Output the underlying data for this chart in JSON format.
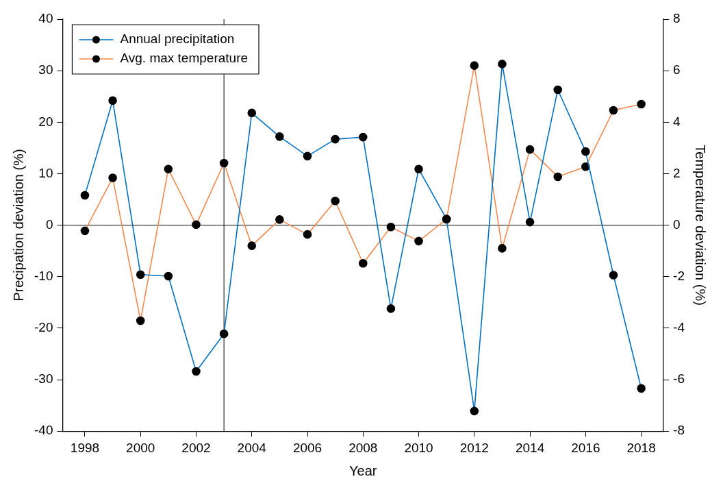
{
  "chart_data": {
    "type": "line",
    "xlabel": "Year",
    "ylabel": "Precipation deviation (%)",
    "y2label": "Temperature deviation (%)",
    "x": [
      1998,
      1999,
      2000,
      2001,
      2002,
      2003,
      2004,
      2005,
      2006,
      2007,
      2008,
      2009,
      2010,
      2011,
      2012,
      2013,
      2014,
      2015,
      2016,
      2017,
      2018
    ],
    "series": [
      {
        "name": "Annual precipitation",
        "color": "#0070c0",
        "values": [
          5.8,
          24.2,
          -9.6,
          -9.9,
          -28.4,
          -21.1,
          21.8,
          17.2,
          13.4,
          16.7,
          17.1,
          -16.2,
          10.9,
          1.2,
          -36.1,
          31.3,
          0.6,
          26.3,
          14.3,
          -9.7,
          -31.7
        ]
      },
      {
        "name": "Avg. max temperature",
        "color": "#f4894f",
        "axis": "y2",
        "values": [
          -0.22,
          1.84,
          -3.71,
          2.18,
          0.02,
          2.41,
          -0.8,
          0.22,
          -0.36,
          0.94,
          -1.48,
          -0.07,
          -0.62,
          0.23,
          6.2,
          -0.9,
          2.94,
          1.88,
          2.27,
          4.46,
          4.7
        ]
      }
    ],
    "xlim": [
      1997.2,
      2018.8
    ],
    "xticks": [
      1998,
      2000,
      2002,
      2004,
      2006,
      2008,
      2010,
      2012,
      2014,
      2016,
      2018
    ],
    "ylim": [
      -40,
      40
    ],
    "yticks": [
      -40,
      -30,
      -20,
      -10,
      0,
      10,
      20,
      30,
      40
    ],
    "y2lim": [
      -8,
      8
    ],
    "y2ticks": [
      -8,
      -6,
      -4,
      -2,
      0,
      2,
      4,
      6,
      8
    ],
    "ref_lines": [
      {
        "axis": "y",
        "value": 0,
        "color": "#000000"
      },
      {
        "axis": "x",
        "value": 2003,
        "color": "#000000"
      }
    ],
    "grid": false,
    "legend": "top left",
    "marker": "circle",
    "line_style": "solid"
  }
}
